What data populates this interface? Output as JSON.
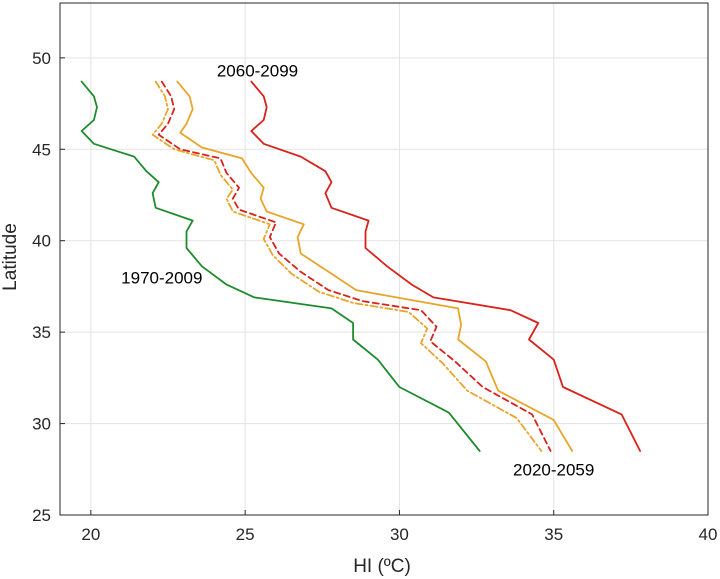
{
  "chart_data": {
    "type": "line",
    "xlabel": "HI (ºC)",
    "ylabel": "Latitude",
    "xlim": [
      19,
      40
    ],
    "ylim": [
      25,
      53
    ],
    "xticks": [
      20,
      25,
      30,
      35,
      40
    ],
    "yticks": [
      25,
      30,
      35,
      40,
      45,
      50
    ],
    "grid": true,
    "annotations": [
      {
        "text": "2060-2099",
        "x": 25.4,
        "y": 49.3
      },
      {
        "text": "1970-2009",
        "x": 22.3,
        "y": 38.0
      },
      {
        "text": "2020-2059",
        "x": 35.0,
        "y": 27.5
      }
    ],
    "series": [
      {
        "color": "#1e8c2d",
        "style": "solid",
        "points": [
          [
            19.7,
            48.7
          ],
          [
            20.1,
            47.9
          ],
          [
            20.2,
            47.3
          ],
          [
            20.1,
            46.6
          ],
          [
            19.7,
            46.0
          ],
          [
            20.1,
            45.3
          ],
          [
            21.4,
            44.6
          ],
          [
            21.8,
            43.8
          ],
          [
            22.2,
            43.2
          ],
          [
            22.0,
            42.6
          ],
          [
            22.1,
            41.8
          ],
          [
            23.3,
            41.1
          ],
          [
            23.1,
            40.5
          ],
          [
            23.1,
            39.6
          ],
          [
            23.6,
            38.6
          ],
          [
            24.4,
            37.6
          ],
          [
            25.3,
            36.9
          ],
          [
            27.8,
            36.3
          ],
          [
            28.5,
            35.5
          ],
          [
            28.5,
            34.6
          ],
          [
            29.3,
            33.5
          ],
          [
            30.0,
            32.0
          ],
          [
            31.6,
            30.6
          ],
          [
            32.6,
            28.5
          ]
        ]
      },
      {
        "color": "#e8a52a",
        "style": "dashdot",
        "points": [
          [
            22.1,
            48.7
          ],
          [
            22.4,
            47.9
          ],
          [
            22.5,
            47.2
          ],
          [
            22.3,
            46.4
          ],
          [
            22.0,
            45.8
          ],
          [
            22.7,
            45.0
          ],
          [
            24.0,
            44.4
          ],
          [
            24.2,
            43.6
          ],
          [
            24.6,
            42.8
          ],
          [
            24.4,
            42.3
          ],
          [
            24.6,
            41.6
          ],
          [
            25.8,
            40.9
          ],
          [
            25.6,
            40.1
          ],
          [
            25.9,
            39.2
          ],
          [
            26.5,
            38.2
          ],
          [
            27.4,
            37.2
          ],
          [
            28.5,
            36.6
          ],
          [
            30.3,
            36.1
          ],
          [
            30.9,
            35.2
          ],
          [
            30.7,
            34.4
          ],
          [
            31.4,
            33.3
          ],
          [
            32.2,
            31.8
          ],
          [
            33.8,
            30.3
          ],
          [
            34.6,
            28.5
          ]
        ]
      },
      {
        "color": "#d8221a",
        "style": "dashed",
        "points": [
          [
            22.3,
            48.7
          ],
          [
            22.6,
            47.9
          ],
          [
            22.7,
            47.2
          ],
          [
            22.5,
            46.4
          ],
          [
            22.2,
            45.8
          ],
          [
            22.9,
            45.0
          ],
          [
            24.2,
            44.5
          ],
          [
            24.4,
            43.7
          ],
          [
            24.8,
            42.9
          ],
          [
            24.6,
            42.3
          ],
          [
            24.8,
            41.7
          ],
          [
            26.0,
            41.0
          ],
          [
            25.8,
            40.2
          ],
          [
            26.1,
            39.3
          ],
          [
            26.8,
            38.3
          ],
          [
            27.7,
            37.3
          ],
          [
            28.8,
            36.7
          ],
          [
            30.7,
            36.2
          ],
          [
            31.2,
            35.3
          ],
          [
            31.0,
            34.5
          ],
          [
            31.8,
            33.4
          ],
          [
            32.7,
            32.0
          ],
          [
            34.3,
            30.5
          ],
          [
            34.9,
            28.5
          ]
        ]
      },
      {
        "color": "#e8a52a",
        "style": "solid",
        "points": [
          [
            22.8,
            48.7
          ],
          [
            23.2,
            47.9
          ],
          [
            23.3,
            47.2
          ],
          [
            23.1,
            46.4
          ],
          [
            22.9,
            45.9
          ],
          [
            23.6,
            45.1
          ],
          [
            24.9,
            44.5
          ],
          [
            25.2,
            43.7
          ],
          [
            25.6,
            42.9
          ],
          [
            25.5,
            42.3
          ],
          [
            25.7,
            41.6
          ],
          [
            26.9,
            40.9
          ],
          [
            26.7,
            40.2
          ],
          [
            26.8,
            39.3
          ],
          [
            27.7,
            38.3
          ],
          [
            28.6,
            37.3
          ],
          [
            29.9,
            36.9
          ],
          [
            31.9,
            36.3
          ],
          [
            32.0,
            35.4
          ],
          [
            31.9,
            34.6
          ],
          [
            32.8,
            33.4
          ],
          [
            33.2,
            31.8
          ],
          [
            35.0,
            30.2
          ],
          [
            35.6,
            28.5
          ]
        ]
      },
      {
        "color": "#d8221a",
        "style": "solid",
        "points": [
          [
            25.2,
            48.7
          ],
          [
            25.6,
            47.9
          ],
          [
            25.7,
            47.3
          ],
          [
            25.6,
            46.6
          ],
          [
            25.2,
            46.0
          ],
          [
            25.6,
            45.3
          ],
          [
            26.8,
            44.6
          ],
          [
            27.6,
            43.8
          ],
          [
            27.8,
            43.2
          ],
          [
            27.6,
            42.6
          ],
          [
            27.8,
            41.8
          ],
          [
            29.0,
            41.1
          ],
          [
            28.9,
            40.5
          ],
          [
            28.9,
            39.6
          ],
          [
            29.6,
            38.6
          ],
          [
            30.4,
            37.6
          ],
          [
            31.1,
            36.9
          ],
          [
            33.6,
            36.2
          ],
          [
            34.5,
            35.5
          ],
          [
            34.2,
            34.6
          ],
          [
            35.0,
            33.5
          ],
          [
            35.3,
            32.0
          ],
          [
            37.2,
            30.5
          ],
          [
            37.8,
            28.5
          ]
        ]
      }
    ]
  }
}
